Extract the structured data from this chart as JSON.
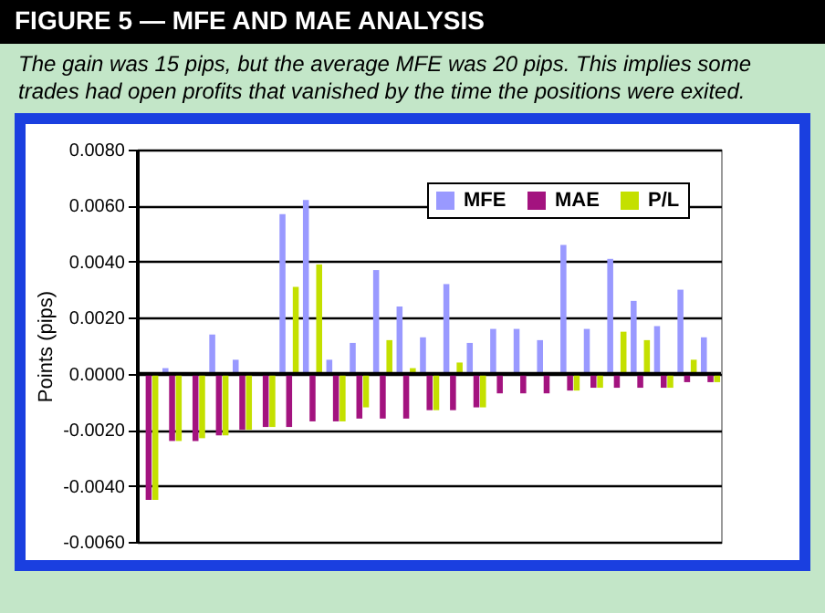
{
  "chart_data": {
    "type": "bar",
    "title": "FIGURE 5 — MFE AND MAE ANALYSIS",
    "subtitle": "The gain was 15 pips, but the average MFE was 20 pips. This implies some trades had open profits that vanished by the time the positions were exited.",
    "ylabel": "Points (pips)",
    "categories": [
      null,
      null,
      null,
      null,
      null,
      null,
      null,
      null,
      null,
      null,
      null,
      null,
      null,
      null,
      null,
      null,
      null,
      null,
      null,
      null,
      null,
      null,
      null,
      null,
      null
    ],
    "series": [
      {
        "name": "MFE",
        "color": "#9999ff",
        "values": [
          0,
          0.0002,
          0,
          0.0014,
          0.0005,
          0,
          0.0057,
          0.0062,
          0.0005,
          0.0011,
          0.0037,
          0.0024,
          0.0013,
          0.0032,
          0.0011,
          0.0016,
          0.0016,
          0.0012,
          0.0046,
          0.0016,
          0.0041,
          0.0026,
          0.0017,
          0.003,
          0.0013
        ]
      },
      {
        "name": "MAE",
        "color": "#a3137f",
        "values": [
          -0.0045,
          -0.0024,
          -0.0024,
          -0.0022,
          -0.002,
          -0.0019,
          -0.0019,
          -0.0017,
          -0.0017,
          -0.0016,
          -0.0016,
          -0.0016,
          -0.0013,
          -0.0013,
          -0.0012,
          -0.0007,
          -0.0007,
          -0.0007,
          -0.0006,
          -0.0005,
          -0.0005,
          -0.0005,
          -0.0005,
          -0.0003,
          -0.0003
        ]
      },
      {
        "name": "P/L",
        "color": "#c4e000",
        "values": [
          -0.0045,
          -0.0024,
          -0.0023,
          -0.0022,
          -0.002,
          -0.0019,
          0.0031,
          0.0039,
          -0.0017,
          -0.0012,
          0.0012,
          0.0002,
          -0.0013,
          0.0004,
          -0.0012,
          0,
          0,
          0,
          -0.0006,
          -0.0005,
          0.0015,
          0.0012,
          -0.0005,
          0.0005,
          -0.0003
        ]
      }
    ],
    "ylim": [
      -0.006,
      0.008
    ],
    "yticks": [
      {
        "value": -0.006,
        "label": "-0.0060"
      },
      {
        "value": -0.004,
        "label": "-0.0040"
      },
      {
        "value": -0.002,
        "label": "-0.0020"
      },
      {
        "value": 0,
        "label": "0.0000"
      },
      {
        "value": 0.002,
        "label": "0.0020"
      },
      {
        "value": 0.004,
        "label": "0.0040"
      },
      {
        "value": 0.006,
        "label": "0.0060"
      },
      {
        "value": 0.008,
        "label": "0.0080"
      }
    ],
    "grid": "y",
    "legend": "top right",
    "tick_labels": "y"
  }
}
